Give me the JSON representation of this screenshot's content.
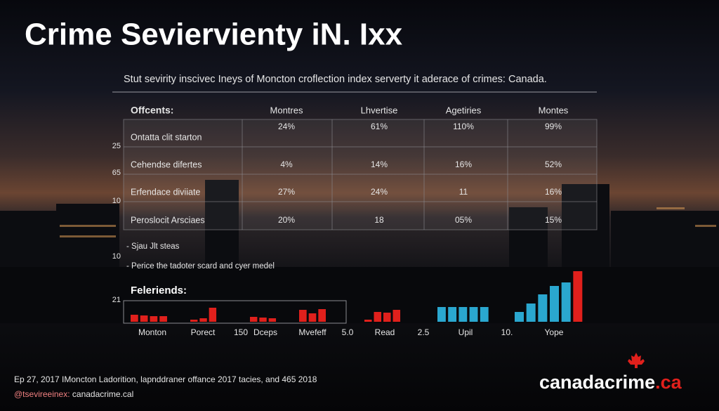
{
  "title": "Crime Seviervienty iN. Ixx",
  "subtitle": "Stut sevirity inscivec Ineys of Moncton croflection index serverty it aderace of crimes: Canada.",
  "table": {
    "header": [
      "Offcents:",
      "Montres",
      "Lhvertise",
      "Agetiries",
      "Montes"
    ],
    "rows": [
      [
        "Ontatta clit starton",
        "24%",
        "61%",
        "110%",
        "99%"
      ],
      [
        "Cehendse difertes",
        "4%",
        "14%",
        "16%",
        "52%"
      ],
      [
        "Erfendace diviiate",
        "27%",
        "24%",
        "11",
        "16%"
      ],
      [
        "Peroslocit Arsciaes",
        "20%",
        "18",
        "05%",
        "15%"
      ]
    ]
  },
  "side_numbers": [
    "25",
    "65",
    "10",
    "10",
    "21"
  ],
  "notes": [
    "- Sjau Jlt steas",
    "- Perice the tadoter scard and cyer medel"
  ],
  "legend_title": "Feleriends:",
  "groups": [
    {
      "label": "Monton",
      "values": [
        10,
        9,
        8,
        8
      ],
      "colors": [
        "#e0201c",
        "#e0201c",
        "#e0201c",
        "#e0201c"
      ]
    },
    {
      "label": "Porect",
      "values": [
        3,
        5,
        20
      ],
      "colors": [
        "#e0201c",
        "#e0201c",
        "#e0201c"
      ]
    },
    {
      "label": "Dceps",
      "values": [
        7,
        6,
        5
      ],
      "colors": [
        "#e0201c",
        "#e0201c",
        "#e0201c"
      ]
    },
    {
      "label": "Mvefeff",
      "values": [
        17,
        12,
        18
      ],
      "colors": [
        "#e0201c",
        "#e0201c",
        "#e0201c"
      ]
    },
    {
      "label": "Read",
      "values": [
        3,
        14,
        13,
        17
      ],
      "colors": [
        "#e0201c",
        "#e0201c",
        "#e0201c",
        "#e0201c"
      ]
    },
    {
      "label": "Upil",
      "values": [
        21,
        21,
        21,
        21,
        21
      ],
      "colors": [
        "#2aa7cf",
        "#2aa7cf",
        "#2aa7cf",
        "#2aa7cf",
        "#2aa7cf"
      ]
    },
    {
      "label": "Yope",
      "values": [
        14,
        26,
        39,
        51,
        56,
        72
      ],
      "colors": [
        "#2aa7cf",
        "#2aa7cf",
        "#2aa7cf",
        "#2aa7cf",
        "#2aa7cf",
        "#e0201c"
      ]
    }
  ],
  "separators": [
    "150",
    "5.0",
    "2.5",
    "10."
  ],
  "footer": {
    "line1": "Ep 27, 2017 IMoncton Ladorition, lapnddraner offance 2017 tacies, and 465 2018",
    "handle": "@tsevireeinex:",
    "site": "canadacrime.cal"
  },
  "logo": {
    "name": "canadacrime",
    "suffix": ".ca"
  }
}
